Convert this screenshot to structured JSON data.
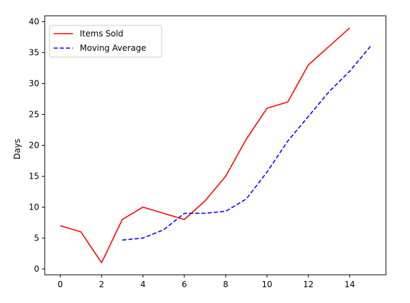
{
  "chart_data": {
    "type": "line",
    "title": "",
    "xlabel": "",
    "ylabel": "Days",
    "xlim": [
      -0.75,
      15.75
    ],
    "ylim": [
      -0.95,
      40.95
    ],
    "xticks": [
      0,
      2,
      4,
      6,
      8,
      10,
      12,
      14
    ],
    "yticks": [
      0,
      5,
      10,
      15,
      20,
      25,
      30,
      35,
      40
    ],
    "grid": false,
    "legend_position": "upper-left",
    "series": [
      {
        "name": "Items Sold",
        "color": "#ff0000",
        "style": "solid",
        "x": [
          0,
          1,
          2,
          3,
          4,
          5,
          6,
          7,
          8,
          9,
          10,
          11,
          12,
          13,
          14
        ],
        "values": [
          7,
          6,
          1,
          8,
          10,
          9,
          8,
          11,
          15,
          21,
          26,
          27,
          33,
          36,
          39
        ]
      },
      {
        "name": "Moving Average",
        "color": "#0000ff",
        "style": "dashed",
        "x": [
          3,
          4,
          5,
          6,
          7,
          8,
          9,
          10,
          11,
          12,
          13,
          14,
          15
        ],
        "values": [
          4.67,
          5.0,
          6.33,
          9.0,
          9.0,
          9.33,
          11.33,
          15.67,
          20.67,
          24.67,
          28.67,
          32.0,
          36.0
        ]
      }
    ]
  }
}
